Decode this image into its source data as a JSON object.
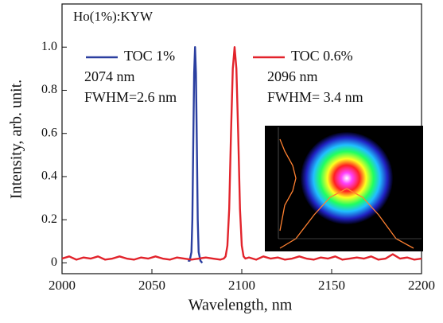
{
  "chart_data": {
    "type": "line",
    "title": "Ho(1%):KYW",
    "x_label": "Wavelength, nm",
    "y_label": "Intensity, arb. unit.",
    "xlim": [
      2000,
      2200
    ],
    "xticks": [
      2000,
      2050,
      2100,
      2150,
      2200
    ],
    "ylim": [
      -0.05,
      1.2
    ],
    "yticks": [
      0,
      0.2,
      0.4,
      0.6,
      0.8,
      {
        "value": 1,
        "label": "1.0"
      }
    ],
    "series": [
      {
        "name": "TOC 1%",
        "color": "#2b3fa0",
        "x": [
          2070,
          2071,
          2072,
          2072.5,
          2073,
          2073.5,
          2074,
          2074.5,
          2075,
          2075.5,
          2076,
          2077,
          2078
        ],
        "values": [
          0.01,
          0.01,
          0.05,
          0.2,
          0.55,
          0.88,
          1.0,
          0.88,
          0.55,
          0.2,
          0.05,
          0.01,
          0.0
        ]
      },
      {
        "name": "TOC 0.6%",
        "color": "#e2232b",
        "x": [
          2000,
          2004,
          2008,
          2012,
          2016,
          2020,
          2024,
          2028,
          2032,
          2036,
          2040,
          2044,
          2048,
          2052,
          2056,
          2060,
          2064,
          2068,
          2072,
          2076,
          2080,
          2084,
          2088,
          2090,
          2091,
          2092,
          2093,
          2094,
          2095,
          2096,
          2097,
          2098,
          2099,
          2100,
          2101,
          2102,
          2104,
          2108,
          2112,
          2116,
          2120,
          2124,
          2128,
          2132,
          2136,
          2140,
          2144,
          2148,
          2152,
          2156,
          2160,
          2164,
          2168,
          2172,
          2176,
          2180,
          2184,
          2188,
          2192,
          2196,
          2200
        ],
        "values": [
          0.02,
          0.03,
          0.015,
          0.025,
          0.02,
          0.03,
          0.015,
          0.02,
          0.03,
          0.02,
          0.015,
          0.025,
          0.02,
          0.03,
          0.02,
          0.015,
          0.025,
          0.02,
          0.015,
          0.02,
          0.025,
          0.02,
          0.015,
          0.02,
          0.03,
          0.08,
          0.25,
          0.6,
          0.9,
          1.0,
          0.9,
          0.6,
          0.25,
          0.08,
          0.03,
          0.02,
          0.025,
          0.015,
          0.03,
          0.02,
          0.025,
          0.015,
          0.02,
          0.03,
          0.02,
          0.015,
          0.025,
          0.02,
          0.03,
          0.015,
          0.02,
          0.025,
          0.02,
          0.03,
          0.015,
          0.02,
          0.04,
          0.02,
          0.025,
          0.015,
          0.02
        ]
      }
    ],
    "annotations": [
      "2074 nm",
      "FWHM=2.6 nm",
      "2096 nm",
      "FWHM= 3.4 nm"
    ]
  }
}
